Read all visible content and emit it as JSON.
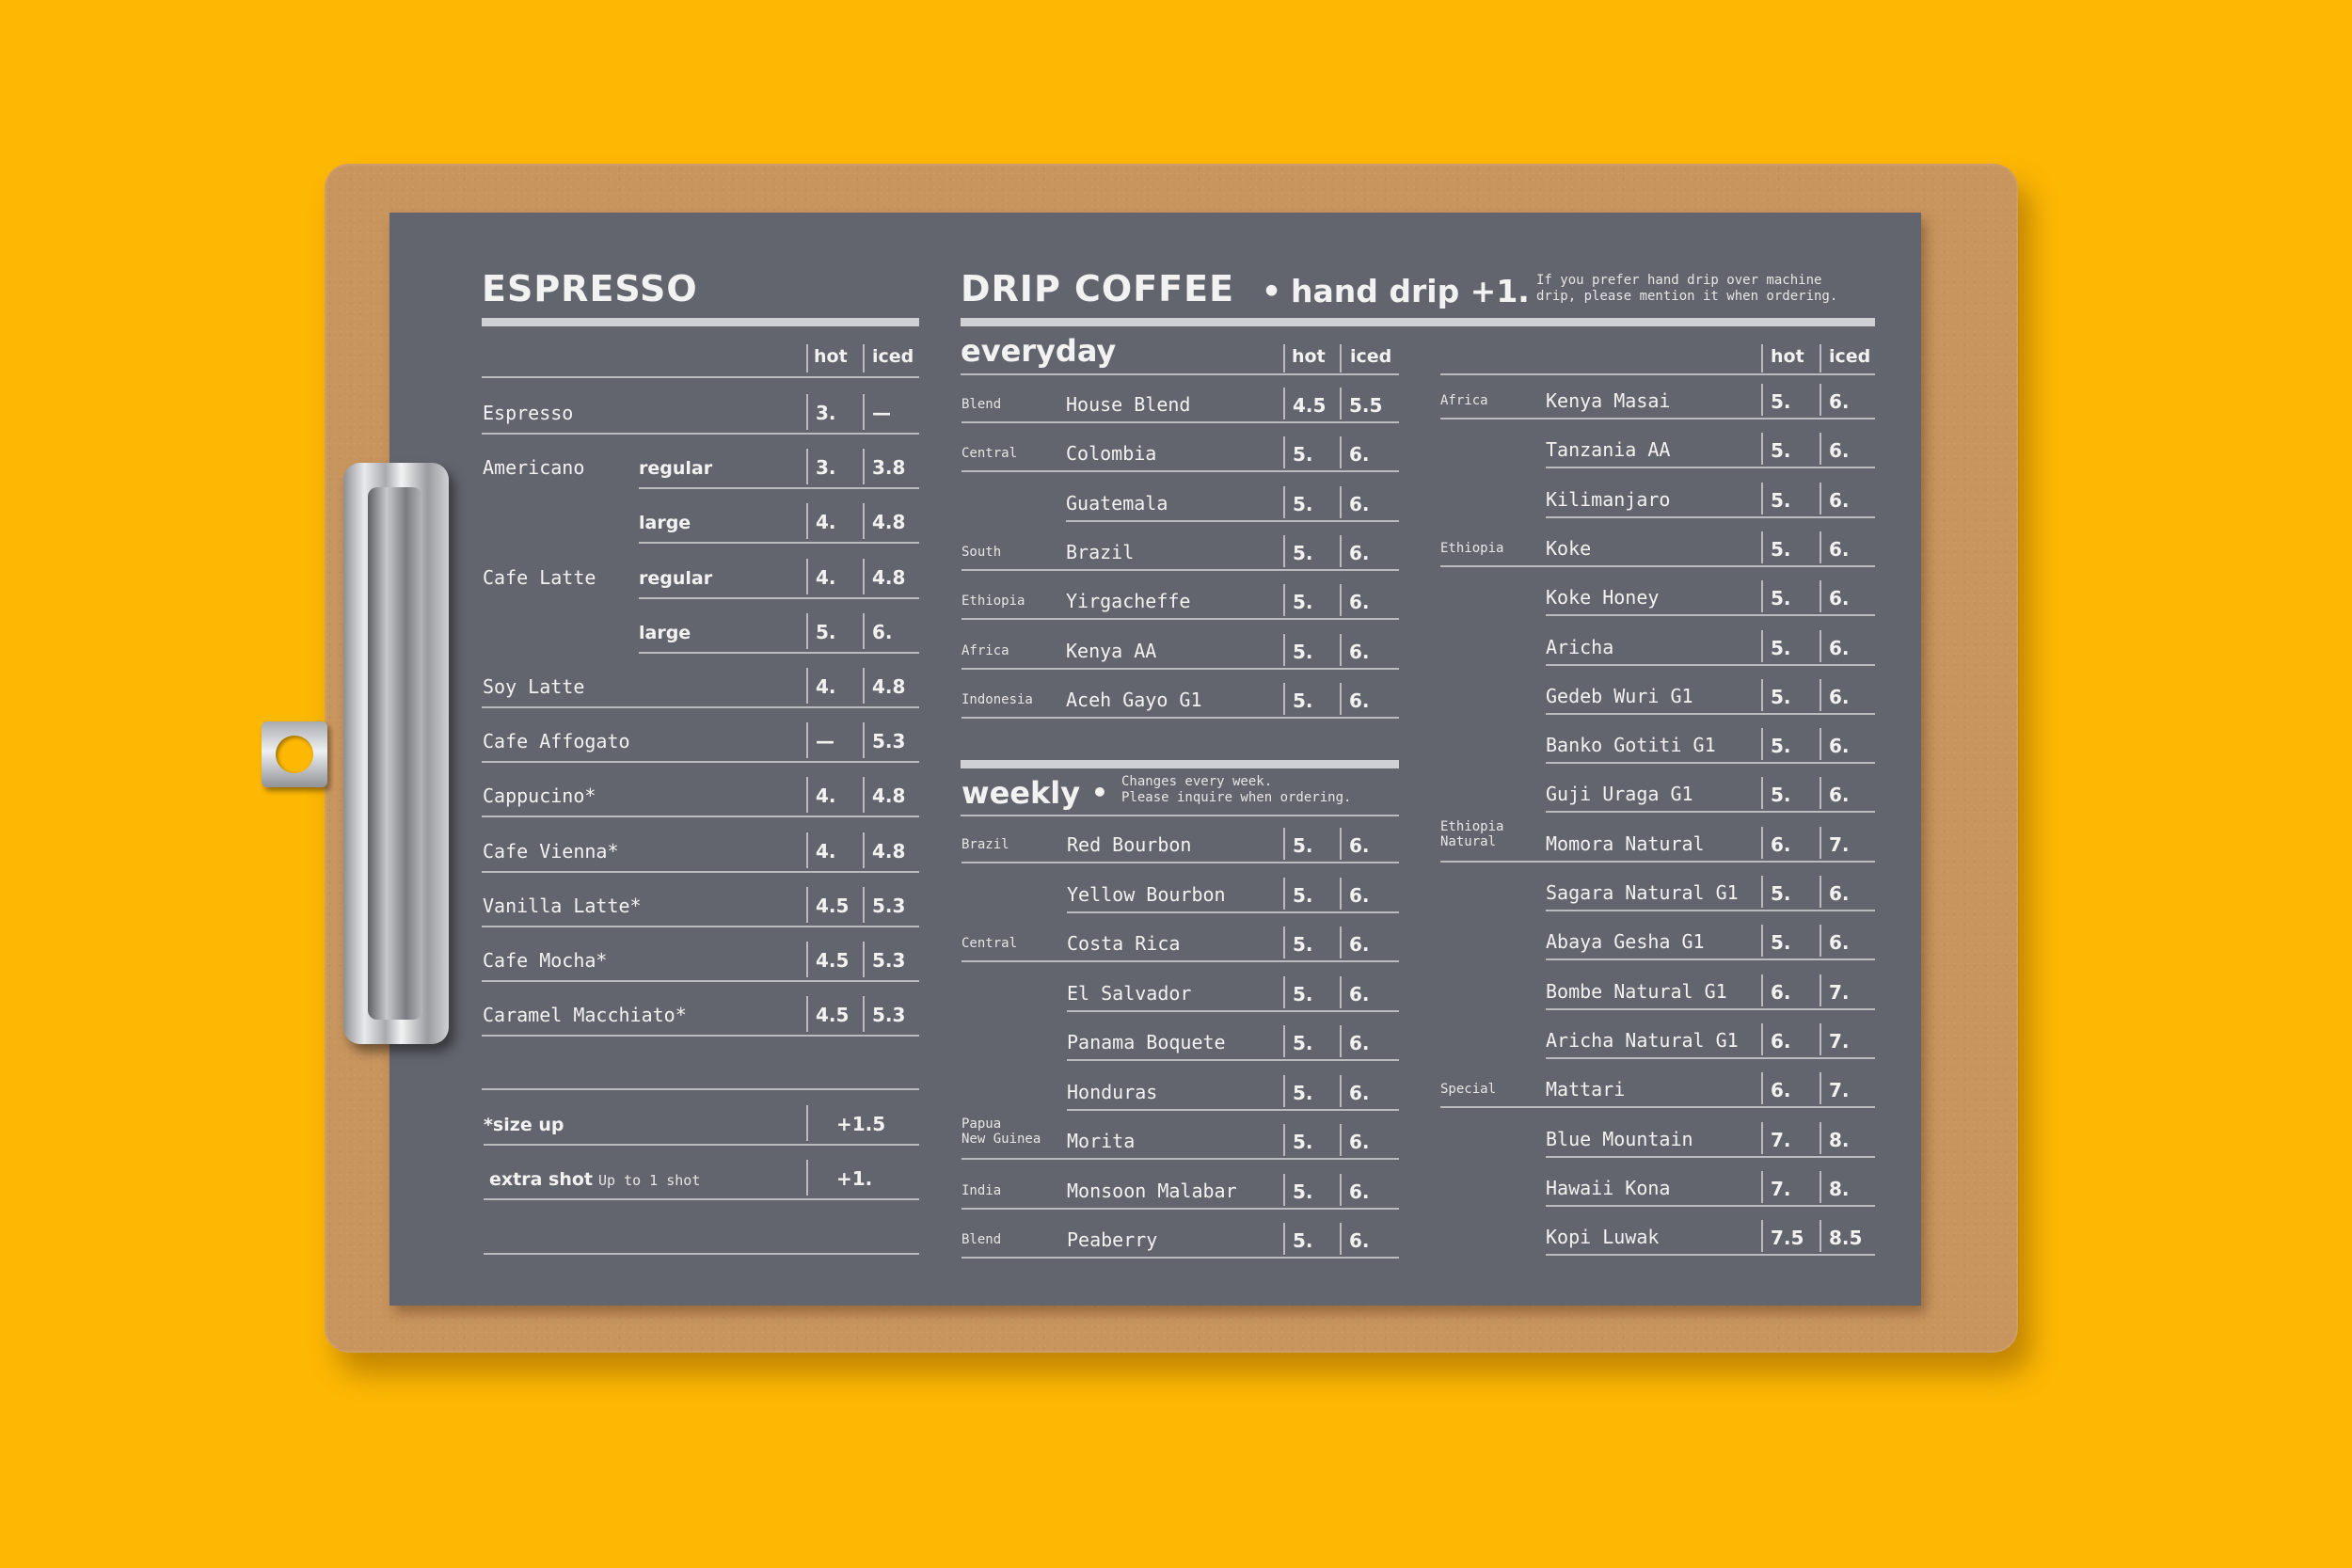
{
  "espresso": {
    "title": "ESPRESSO",
    "headers": {
      "hot": "hot",
      "iced": "iced"
    },
    "rows": [
      {
        "name": "Espresso",
        "variant": "",
        "hot": "3.",
        "iced": "—"
      },
      {
        "name": "Americano",
        "variant": "regular",
        "hot": "3.",
        "iced": "3.8"
      },
      {
        "name": "",
        "variant": "large",
        "hot": "4.",
        "iced": "4.8"
      },
      {
        "name": "Cafe Latte",
        "variant": "regular",
        "hot": "4.",
        "iced": "4.8"
      },
      {
        "name": "",
        "variant": "large",
        "hot": "5.",
        "iced": "6."
      },
      {
        "name": "Soy Latte",
        "variant": "",
        "hot": "4.",
        "iced": "4.8"
      },
      {
        "name": "Cafe Affogato",
        "variant": "",
        "hot": "—",
        "iced": "5.3"
      },
      {
        "name": "Cappucino*",
        "variant": "",
        "hot": "4.",
        "iced": "4.8"
      },
      {
        "name": "Cafe Vienna*",
        "variant": "",
        "hot": "4.",
        "iced": "4.8"
      },
      {
        "name": "Vanilla Latte*",
        "variant": "",
        "hot": "4.5",
        "iced": "5.3"
      },
      {
        "name": "Cafe Mocha*",
        "variant": "",
        "hot": "4.5",
        "iced": "5.3"
      },
      {
        "name": "Caramel Macchiato*",
        "variant": "",
        "hot": "4.5",
        "iced": "5.3"
      }
    ],
    "extras": [
      {
        "label": "*size up",
        "note": "",
        "price": "+1.5"
      },
      {
        "label": "extra shot",
        "note": "Up to 1 shot",
        "price": "+1."
      }
    ]
  },
  "drip": {
    "title": "DRIP COFFEE",
    "bullet": "•",
    "subtitle": "hand drip +1.",
    "note": [
      "If you prefer hand drip over machine",
      "drip, please mention it when ordering."
    ],
    "headers": {
      "hot": "hot",
      "iced": "iced"
    },
    "everyday": {
      "title": "everyday",
      "rows": [
        {
          "region": [
            "Blend"
          ],
          "name": "House Blend",
          "hot": "4.5",
          "iced": "5.5"
        },
        {
          "region": [
            "Central"
          ],
          "name": "Colombia",
          "hot": "5.",
          "iced": "6."
        },
        {
          "region": [
            ""
          ],
          "name": "Guatemala",
          "hot": "5.",
          "iced": "6."
        },
        {
          "region": [
            "South"
          ],
          "name": "Brazil",
          "hot": "5.",
          "iced": "6."
        },
        {
          "region": [
            "Ethiopia"
          ],
          "name": "Yirgacheffe",
          "hot": "5.",
          "iced": "6."
        },
        {
          "region": [
            "Africa"
          ],
          "name": "Kenya AA",
          "hot": "5.",
          "iced": "6."
        },
        {
          "region": [
            "Indonesia"
          ],
          "name": "Aceh Gayo G1",
          "hot": "5.",
          "iced": "6."
        }
      ]
    },
    "weekly": {
      "title": "weekly",
      "bullet": "•",
      "note": [
        "Changes every week.",
        "Please inquire when ordering."
      ],
      "rows": [
        {
          "region": [
            "Brazil"
          ],
          "name": "Red Bourbon",
          "hot": "5.",
          "iced": "6."
        },
        {
          "region": [
            ""
          ],
          "name": "Yellow Bourbon",
          "hot": "5.",
          "iced": "6."
        },
        {
          "region": [
            "Central"
          ],
          "name": "Costa Rica",
          "hot": "5.",
          "iced": "6."
        },
        {
          "region": [
            ""
          ],
          "name": "El Salvador",
          "hot": "5.",
          "iced": "6."
        },
        {
          "region": [
            ""
          ],
          "name": "Panama Boquete",
          "hot": "5.",
          "iced": "6."
        },
        {
          "region": [
            ""
          ],
          "name": "Honduras",
          "hot": "5.",
          "iced": "6."
        },
        {
          "region": [
            "Papua",
            "New Guinea"
          ],
          "name": "Morita",
          "hot": "5.",
          "iced": "6."
        },
        {
          "region": [
            "India"
          ],
          "name": "Monsoon Malabar",
          "hot": "5.",
          "iced": "6."
        },
        {
          "region": [
            "Blend"
          ],
          "name": "Peaberry",
          "hot": "5.",
          "iced": "6."
        }
      ]
    },
    "right": {
      "rows": [
        {
          "region": [
            "Africa"
          ],
          "name": "Kenya Masai",
          "hot": "5.",
          "iced": "6."
        },
        {
          "region": [
            ""
          ],
          "name": "Tanzania AA",
          "hot": "5.",
          "iced": "6."
        },
        {
          "region": [
            ""
          ],
          "name": "Kilimanjaro",
          "hot": "5.",
          "iced": "6."
        },
        {
          "region": [
            "Ethiopia"
          ],
          "name": "Koke",
          "hot": "5.",
          "iced": "6."
        },
        {
          "region": [
            ""
          ],
          "name": "Koke Honey",
          "hot": "5.",
          "iced": "6."
        },
        {
          "region": [
            ""
          ],
          "name": "Aricha",
          "hot": "5.",
          "iced": "6."
        },
        {
          "region": [
            ""
          ],
          "name": "Gedeb Wuri G1",
          "hot": "5.",
          "iced": "6."
        },
        {
          "region": [
            ""
          ],
          "name": "Banko Gotiti G1",
          "hot": "5.",
          "iced": "6."
        },
        {
          "region": [
            ""
          ],
          "name": "Guji Uraga G1",
          "hot": "5.",
          "iced": "6."
        },
        {
          "region": [
            "Ethiopia",
            "Natural"
          ],
          "name": "Momora Natural",
          "hot": "6.",
          "iced": "7."
        },
        {
          "region": [
            ""
          ],
          "name": "Sagara Natural G1",
          "hot": "5.",
          "iced": "6."
        },
        {
          "region": [
            ""
          ],
          "name": "Abaya Gesha G1",
          "hot": "5.",
          "iced": "6."
        },
        {
          "region": [
            ""
          ],
          "name": "Bombe Natural G1",
          "hot": "6.",
          "iced": "7."
        },
        {
          "region": [
            ""
          ],
          "name": "Aricha Natural G1",
          "hot": "6.",
          "iced": "7."
        },
        {
          "region": [
            "Special"
          ],
          "name": "Mattari",
          "hot": "6.",
          "iced": "7."
        },
        {
          "region": [
            ""
          ],
          "name": "Blue Mountain",
          "hot": "7.",
          "iced": "8."
        },
        {
          "region": [
            ""
          ],
          "name": "Hawaii Kona",
          "hot": "7.",
          "iced": "8."
        },
        {
          "region": [
            ""
          ],
          "name": "Kopi Luwak",
          "hot": "7.5",
          "iced": "8.5"
        }
      ]
    }
  }
}
